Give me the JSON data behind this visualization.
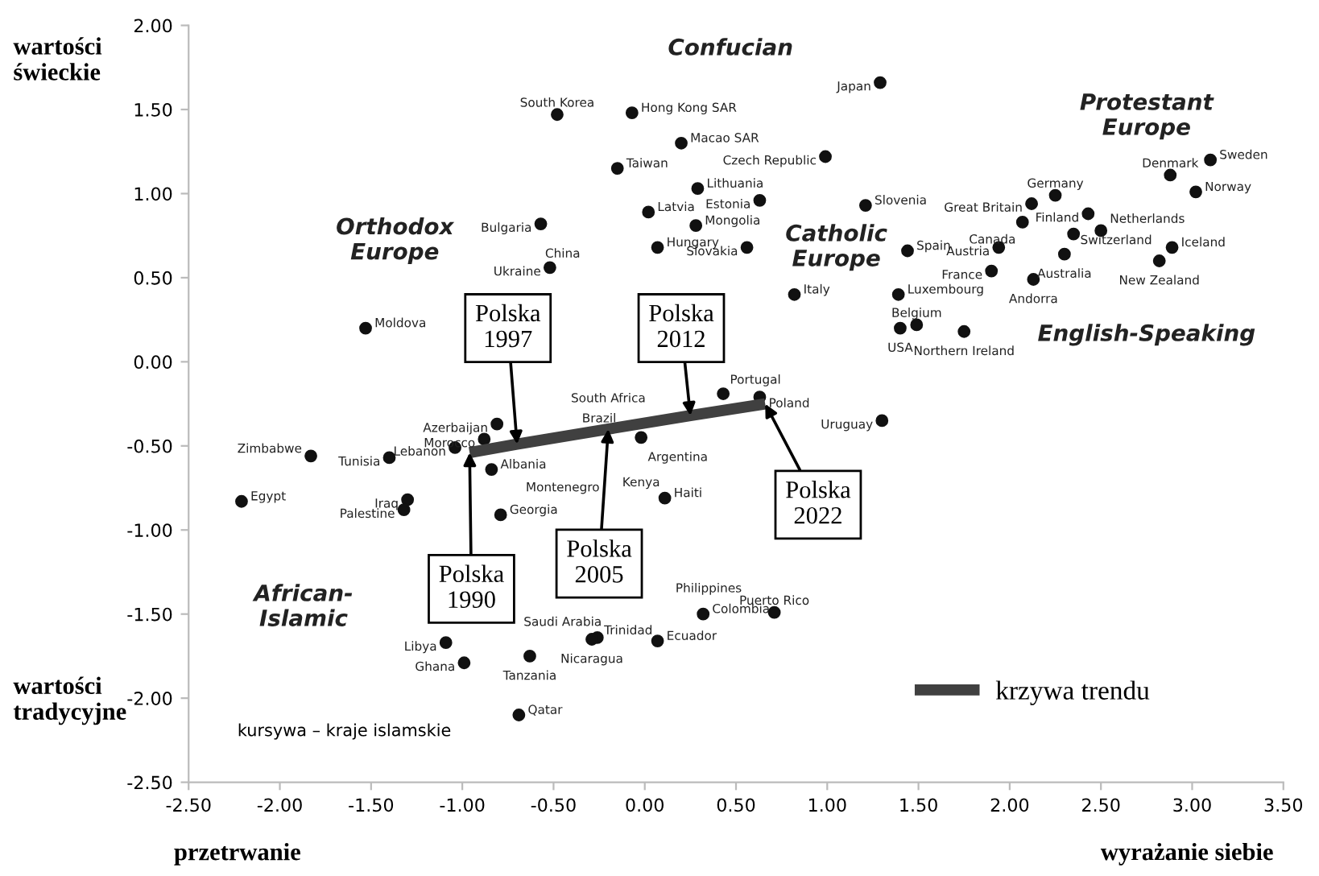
{
  "chart_data": {
    "type": "scatter",
    "xlim": [
      -2.5,
      3.5
    ],
    "ylim": [
      -2.5,
      2.0
    ],
    "xticks": [
      {
        "value": -2.5,
        "label": "-2.50"
      },
      {
        "value": -2.0,
        "label": "-2.00"
      },
      {
        "value": -1.5,
        "label": "-1.50"
      },
      {
        "value": -1.0,
        "label": "-1.00"
      },
      {
        "value": -0.5,
        "label": "-0.50"
      },
      {
        "value": 0,
        "label": "0.00"
      },
      {
        "value": 0.5,
        "label": "0.50"
      },
      {
        "value": 1.0,
        "label": "1.00"
      },
      {
        "value": 1.5,
        "label": "1.50"
      },
      {
        "value": 2.0,
        "label": "2.00"
      },
      {
        "value": 2.5,
        "label": "2.50"
      },
      {
        "value": 3.0,
        "label": "3.00"
      },
      {
        "value": 3.5,
        "label": "3.50"
      }
    ],
    "yticks": [
      {
        "value": -2.5,
        "label": "-2.50"
      },
      {
        "value": -2.0,
        "label": "-2.00"
      },
      {
        "value": -1.5,
        "label": "-1.50"
      },
      {
        "value": -1.0,
        "label": "-1.00"
      },
      {
        "value": -0.5,
        "label": "-0.50"
      },
      {
        "value": 0,
        "label": "0.00"
      },
      {
        "value": 0.5,
        "label": "0.50"
      },
      {
        "value": 1.0,
        "label": "1.00"
      },
      {
        "value": 1.5,
        "label": "1.50"
      },
      {
        "value": 2.0,
        "label": "2.00"
      }
    ],
    "grid": false,
    "legend": "bottom right",
    "series": [
      {
        "color": "#111111",
        "marker": "circle",
        "x": [
          1.29,
          -0.48,
          -0.07,
          0.2,
          -0.15,
          0.29,
          0.02,
          0.28,
          0.07,
          -0.57,
          -0.52,
          -1.53,
          0.99,
          0.63,
          1.21,
          0.56,
          1.44,
          0.82,
          1.39,
          1.49,
          1.4,
          1.75,
          1.94,
          1.9,
          2.13,
          2.3,
          2.25,
          2.12,
          2.07,
          2.35,
          2.43,
          2.5,
          2.88,
          3.1,
          3.02,
          2.89,
          2.82,
          0.43,
          0.63,
          1.3,
          0.71,
          0.32,
          -0.81,
          -0.88,
          -1.04,
          -1.4,
          -1.83,
          -2.21,
          -1.3,
          -1.32,
          -0.84,
          -0.79,
          -0.02,
          0.11,
          -1.09,
          -0.99,
          -0.63,
          -0.69,
          -0.26,
          -0.29,
          0.07
        ],
        "values": [
          1.66,
          1.47,
          1.48,
          1.3,
          1.15,
          1.03,
          0.89,
          0.81,
          0.68,
          0.82,
          0.56,
          0.2,
          1.22,
          0.96,
          0.93,
          0.68,
          0.66,
          0.4,
          0.4,
          0.22,
          0.2,
          0.18,
          0.68,
          0.54,
          0.49,
          0.64,
          0.99,
          0.94,
          0.83,
          0.76,
          0.88,
          0.78,
          1.11,
          1.2,
          1.01,
          0.68,
          0.6,
          -0.19,
          -0.21,
          -0.35,
          -1.49,
          -1.5,
          -0.37,
          -0.46,
          -0.51,
          -0.57,
          -0.56,
          -0.83,
          -0.82,
          -0.88,
          -0.64,
          -0.91,
          -0.45,
          -0.81,
          -1.67,
          -1.79,
          -1.75,
          -2.1,
          -1.64,
          -1.65,
          -1.66
        ]
      },
      {
        "type": "line",
        "name": "krzywa trendu",
        "color": "#404040",
        "x": [
          -0.96,
          -0.7,
          -0.2,
          0.25,
          0.66
        ],
        "values": [
          -0.54,
          -0.49,
          -0.4,
          -0.32,
          -0.25
        ]
      }
    ],
    "annotations": [
      {
        "text": "Japan",
        "x": 1.29,
        "y": 1.66
      },
      {
        "text": "South Korea",
        "x": -0.48,
        "y": 1.47
      },
      {
        "text": "Hong Kong SAR",
        "x": -0.07,
        "y": 1.48
      },
      {
        "text": "Macao SAR",
        "x": 0.2,
        "y": 1.3
      },
      {
        "text": "Taiwan",
        "x": -0.15,
        "y": 1.15
      },
      {
        "text": "Lithuania",
        "x": 0.29,
        "y": 1.03
      },
      {
        "text": "Latvia",
        "x": 0.02,
        "y": 0.89
      },
      {
        "text": "Mongolia",
        "x": 0.28,
        "y": 0.81
      },
      {
        "text": "Hungary",
        "x": 0.07,
        "y": 0.68
      },
      {
        "text": "Bulgaria",
        "x": -0.57,
        "y": 0.82
      },
      {
        "text": "Ukraine",
        "x": -0.52,
        "y": 0.56
      },
      {
        "text": "Moldova",
        "x": -1.53,
        "y": 0.2
      },
      {
        "text": "Czech Republic",
        "x": 0.99,
        "y": 1.22
      },
      {
        "text": "Estonia",
        "x": 0.63,
        "y": 0.96
      },
      {
        "text": "Slovenia",
        "x": 1.21,
        "y": 0.93
      },
      {
        "text": "Slovakia",
        "x": 0.56,
        "y": 0.68
      },
      {
        "text": "Spain",
        "x": 1.44,
        "y": 0.66
      },
      {
        "text": "Italy",
        "x": 0.82,
        "y": 0.4
      },
      {
        "text": "Luxembourg",
        "x": 1.39,
        "y": 0.4
      },
      {
        "text": "Belgium",
        "x": 1.49,
        "y": 0.22
      },
      {
        "text": "USA",
        "x": 1.4,
        "y": 0.2
      },
      {
        "text": "Northern Ireland",
        "x": 1.75,
        "y": 0.18
      },
      {
        "text": "Austria",
        "x": 1.94,
        "y": 0.68
      },
      {
        "text": "France",
        "x": 1.9,
        "y": 0.54
      },
      {
        "text": "Andorra",
        "x": 2.13,
        "y": 0.49
      },
      {
        "text": "Australia",
        "x": 2.3,
        "y": 0.64
      },
      {
        "text": "Germany",
        "x": 2.25,
        "y": 0.99
      },
      {
        "text": "Great Britain",
        "x": 2.12,
        "y": 0.94
      },
      {
        "text": "Canada",
        "x": 2.07,
        "y": 0.83
      },
      {
        "text": "Switzerland",
        "x": 2.35,
        "y": 0.76
      },
      {
        "text": "Finland",
        "x": 2.43,
        "y": 0.88
      },
      {
        "text": "Netherlands",
        "x": 2.5,
        "y": 0.78
      },
      {
        "text": "Denmark",
        "x": 2.88,
        "y": 1.11
      },
      {
        "text": "Sweden",
        "x": 3.1,
        "y": 1.2
      },
      {
        "text": "Norway",
        "x": 3.02,
        "y": 1.01
      },
      {
        "text": "Iceland",
        "x": 2.89,
        "y": 0.68
      },
      {
        "text": "New Zealand",
        "x": 2.82,
        "y": 0.6
      },
      {
        "text": "Portugal",
        "x": 0.43,
        "y": -0.19
      },
      {
        "text": "Poland",
        "x": 0.63,
        "y": -0.21
      },
      {
        "text": "Uruguay",
        "x": 1.3,
        "y": -0.35
      },
      {
        "text": "Puerto Rico",
        "x": 0.71,
        "y": -1.49
      },
      {
        "text": "Colombia",
        "x": 0.32,
        "y": -1.5
      },
      {
        "text": "Azerbaijan",
        "x": -0.81,
        "y": -0.37
      },
      {
        "text": "Morocco",
        "x": -0.88,
        "y": -0.46
      },
      {
        "text": "Lebanon",
        "x": -1.04,
        "y": -0.51
      },
      {
        "text": "Tunisia",
        "x": -1.4,
        "y": -0.57
      },
      {
        "text": "Zimbabwe",
        "x": -1.83,
        "y": -0.56
      },
      {
        "text": "Egypt",
        "x": -2.21,
        "y": -0.83
      },
      {
        "text": "Iraq",
        "x": -1.3,
        "y": -0.82
      },
      {
        "text": "Palestine",
        "x": -1.32,
        "y": -0.88
      },
      {
        "text": "Albania",
        "x": -0.84,
        "y": -0.64
      },
      {
        "text": "Georgia",
        "x": -0.79,
        "y": -0.91
      },
      {
        "text": "Argentina",
        "x": -0.02,
        "y": -0.45
      },
      {
        "text": "Haiti",
        "x": 0.11,
        "y": -0.81
      },
      {
        "text": "Libya",
        "x": -1.09,
        "y": -1.67
      },
      {
        "text": "Ghana",
        "x": -0.99,
        "y": -1.79
      },
      {
        "text": "Tanzania",
        "x": -0.63,
        "y": -1.75
      },
      {
        "text": "Qatar",
        "x": -0.69,
        "y": -2.1
      },
      {
        "text": "Trinidad",
        "x": -0.26,
        "y": -1.64
      },
      {
        "text": "Nicaragua",
        "x": -0.29,
        "y": -1.65
      },
      {
        "text": "Ecuador",
        "x": 0.07,
        "y": -1.66
      },
      "China",
      "Kenya",
      "Saudi Arabia",
      "Philippines",
      "Brazil",
      "South Africa",
      "Montenegro",
      "Confucian",
      "Orthodox\nEurope",
      "Catholic\nEurope",
      "Protestant\nEurope",
      "English-Speaking",
      "African-\nIslamic",
      {
        "text": "Polska\n1990",
        "x": -0.96,
        "y": -0.54
      },
      {
        "text": "Polska\n1997",
        "x": -0.7,
        "y": -0.49
      },
      {
        "text": "Polska\n2012",
        "x": 0.25,
        "y": -0.32
      },
      {
        "text": "Polska\n2005",
        "x": -0.2,
        "y": -0.4
      },
      {
        "text": "Polska\n2022",
        "x": 0.66,
        "y": -0.25
      },
      "wartości\nświeckie",
      "wartości\ntradycyjne",
      "przetrwanie",
      "wyrażanie siebie",
      "kursywa – kraje islamskie"
    ]
  }
}
